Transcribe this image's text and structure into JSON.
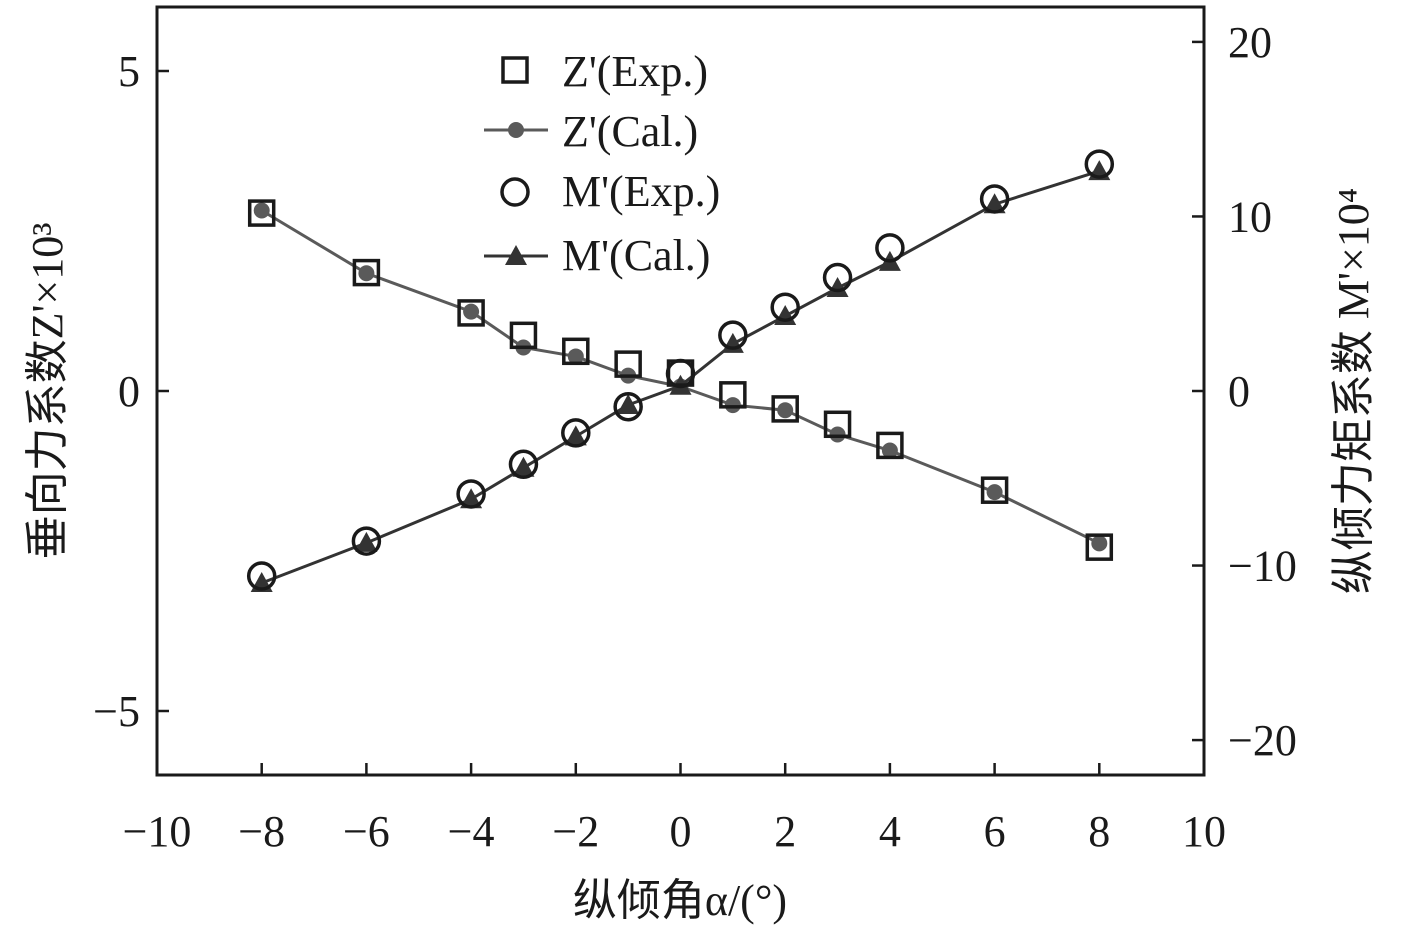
{
  "chart_data": {
    "type": "line",
    "xlabel": "纵倾角α/(°)",
    "ylabel_left": "垂向力系数Z'×10³",
    "ylabel_right": "纵倾力矩系数 M'×10⁴",
    "xlim": [
      -10,
      10
    ],
    "ylim_left": [
      -6,
      6
    ],
    "ylim_right": [
      -22,
      22
    ],
    "x_ticks": [
      "−10",
      "−8",
      "−6",
      "−4",
      "−2",
      "0",
      "2",
      "4",
      "6",
      "8",
      "10"
    ],
    "y_left_ticks": [
      "−5",
      "0",
      "5"
    ],
    "y_right_ticks": [
      "−20",
      "−10",
      "0",
      "10",
      "20"
    ],
    "x": [
      -8,
      -6,
      -4,
      -3,
      -2,
      -1,
      0,
      1,
      2,
      3,
      4,
      6,
      8
    ],
    "series": [
      {
        "name": "Z'(Exp.)",
        "axis": "left",
        "marker": "square-open",
        "line": false,
        "values": [
          2.78,
          1.85,
          1.22,
          0.87,
          0.62,
          0.42,
          0.28,
          -0.06,
          -0.28,
          -0.52,
          -0.85,
          -1.55,
          -2.44
        ]
      },
      {
        "name": "Z'(Cal.)",
        "axis": "left",
        "marker": "circle-filled",
        "line": true,
        "values": [
          2.82,
          1.84,
          1.24,
          0.68,
          0.54,
          0.24,
          0.07,
          -0.22,
          -0.3,
          -0.68,
          -0.93,
          -1.58,
          -2.38
        ]
      },
      {
        "name": "M'(Exp.)",
        "axis": "right",
        "marker": "circle-open",
        "line": false,
        "values": [
          -10.6,
          -8.6,
          -5.9,
          -4.2,
          -2.4,
          -0.9,
          1.0,
          3.2,
          4.8,
          6.5,
          8.2,
          11.0,
          13.0
        ]
      },
      {
        "name": "M'(Cal.)",
        "axis": "right",
        "marker": "triangle-filled",
        "line": true,
        "values": [
          -11.0,
          -8.7,
          -6.2,
          -4.4,
          -2.6,
          -0.8,
          0.3,
          2.7,
          4.3,
          5.9,
          7.4,
          10.7,
          12.6
        ]
      }
    ],
    "legend_position": "top-center",
    "grid": false,
    "colors": {
      "frame": "#1a1a1a",
      "exp_marker": "#1a1a1a",
      "z_cal": "#5a5a5a",
      "m_cal": "#333333"
    }
  }
}
